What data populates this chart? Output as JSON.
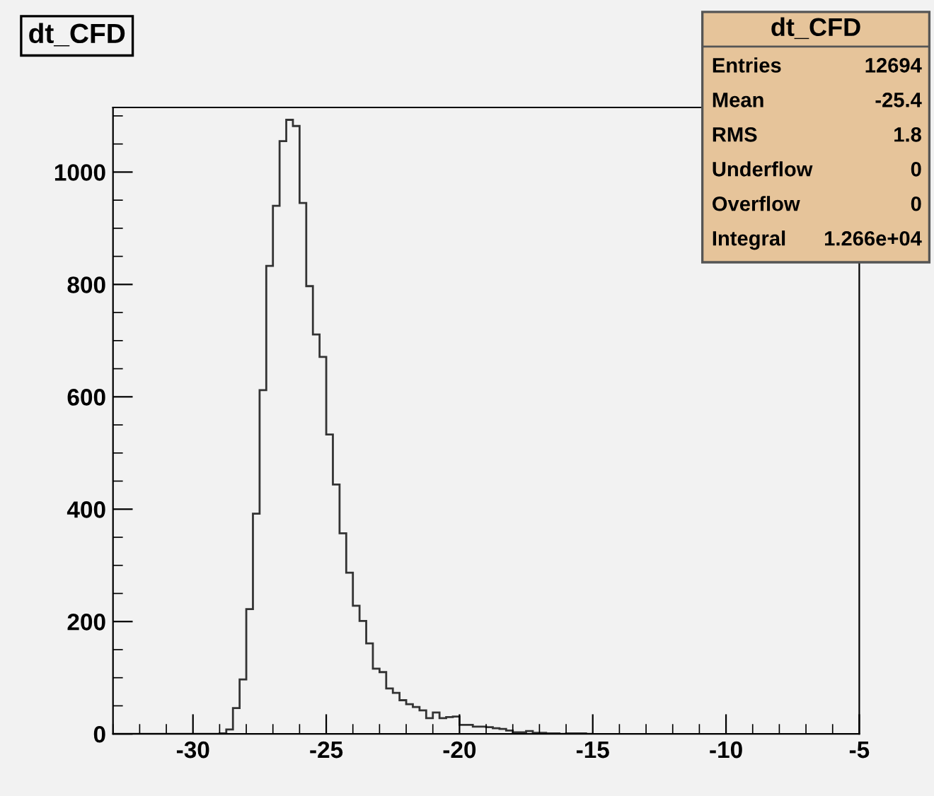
{
  "chart_data": {
    "type": "histogram",
    "title": "dt_CFD",
    "bins": [
      -33,
      -32.75,
      -32.5,
      -32.25,
      -32,
      -31.75,
      -31.5,
      -31.25,
      -31,
      -30.75,
      -30.5,
      -30.25,
      -30,
      -29.75,
      -29.5,
      -29.25,
      -29,
      -28.75,
      -28.5,
      -28.25,
      -28,
      -27.75,
      -27.5,
      -27.25,
      -27,
      -26.75,
      -26.5,
      -26.25,
      -26,
      -25.75,
      -25.5,
      -25.25,
      -25,
      -24.75,
      -24.5,
      -24.25,
      -24,
      -23.75,
      -23.5,
      -23.25,
      -23,
      -22.75,
      -22.5,
      -22.25,
      -22,
      -21.75,
      -21.5,
      -21.25,
      -21,
      -20.75,
      -20.5,
      -20.25,
      -20,
      -19.75,
      -19.5,
      -19.25,
      -19,
      -18.75,
      -18.5,
      -18.25,
      -18,
      -17.75,
      -17.5,
      -17.25,
      -17,
      -16.75,
      -16.5,
      -16.25,
      -16,
      -15.75,
      -15.5,
      -15.25,
      -15
    ],
    "values": [
      0,
      0,
      0,
      0,
      0,
      0,
      0,
      0,
      0,
      0,
      0,
      0,
      0,
      0,
      0,
      0,
      1,
      8,
      46,
      97,
      222,
      392,
      612,
      833,
      940,
      1055,
      1093,
      1082,
      945,
      797,
      711,
      671,
      533,
      444,
      357,
      287,
      228,
      201,
      161,
      116,
      110,
      81,
      73,
      60,
      53,
      48,
      42,
      28,
      38,
      28,
      30,
      31,
      16,
      16,
      13,
      13,
      12,
      10,
      9,
      6,
      3,
      3,
      5,
      2,
      2,
      1,
      1,
      0,
      1,
      1,
      1,
      0
    ],
    "color": "#333333",
    "xlim": [
      -33,
      -5
    ],
    "xticks": [
      -30,
      -25,
      -20,
      -15,
      -10,
      -5
    ],
    "ylim": [
      0,
      1115
    ],
    "yticks": [
      0,
      200,
      400,
      600,
      800,
      1000
    ],
    "grid": false,
    "annotations": [
      "dt_CFD",
      "Entries",
      "12694",
      "Mean",
      "-25.4",
      "RMS",
      "1.8",
      "Underflow",
      "0",
      "Overflow",
      "0",
      "Integral",
      "1.266e+04"
    ]
  }
}
